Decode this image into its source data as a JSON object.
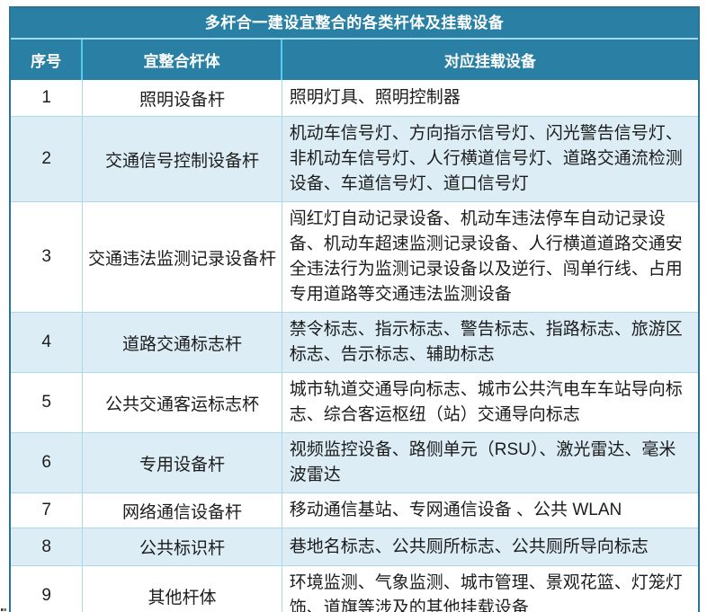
{
  "table": {
    "title": "多杆合一建设宜整合的各类杆体及挂载设备",
    "columns": [
      "序号",
      "宜整合杆体",
      "对应挂载设备"
    ],
    "rows": [
      {
        "no": "1",
        "pole": "照明设备杆",
        "devices": "照明灯具、照明控制器"
      },
      {
        "no": "2",
        "pole": "交通信号控制设备杆",
        "devices": "机动车信号灯、方向指示信号灯、闪光警告信号灯、非机动车信号灯、人行横道信号灯、道路交通流检测设备、车道信号灯、道口信号灯"
      },
      {
        "no": "3",
        "pole": "交通违法监测记录设备杆",
        "devices": "闯红灯自动记录设备、机动车违法停车自动记录设备、机动车超速监测记录设备、人行横道道路交通安全违法行为监测记录设备以及逆行、闯单行线、占用专用道路等交通违法监测设备"
      },
      {
        "no": "4",
        "pole": "道路交通标志杆",
        "devices": "禁令标志、指示标志、警告标志、指路标志、旅游区标志、告示标志、辅助标志"
      },
      {
        "no": "5",
        "pole": "公共交通客运标志杯",
        "devices": "城市轨道交通导向标志、城市公共汽电车车站导向标志、综合客运枢纽（站）交通导向标志"
      },
      {
        "no": "6",
        "pole": "专用设备杆",
        "devices": "视频监控设备、路侧单元（RSU）、激光雷达、毫米波雷达"
      },
      {
        "no": "7",
        "pole": "网络通信设备杆",
        "devices": "移动通信基站、专网通信设备 、公共 WLAN"
      },
      {
        "no": "8",
        "pole": "公共标识杆",
        "devices": "巷地名标志、公共厕所标志、公共厕所导向标志"
      },
      {
        "no": "9",
        "pole": "其他杆体",
        "devices": "环境监测、气象监测、城市管理、景观花篮、灯笼灯饰、道旗等涉及的其他挂载设备"
      }
    ],
    "colors": {
      "header_bg": "#2A80A4",
      "alt_row_bg": "#DCEDF5",
      "outer_border": "#2C7294",
      "inner_border": "#ABD9EC",
      "header_separator": "#55CBEE",
      "header_text": "#FFFFFF",
      "body_text": "#1C1C1C"
    }
  }
}
